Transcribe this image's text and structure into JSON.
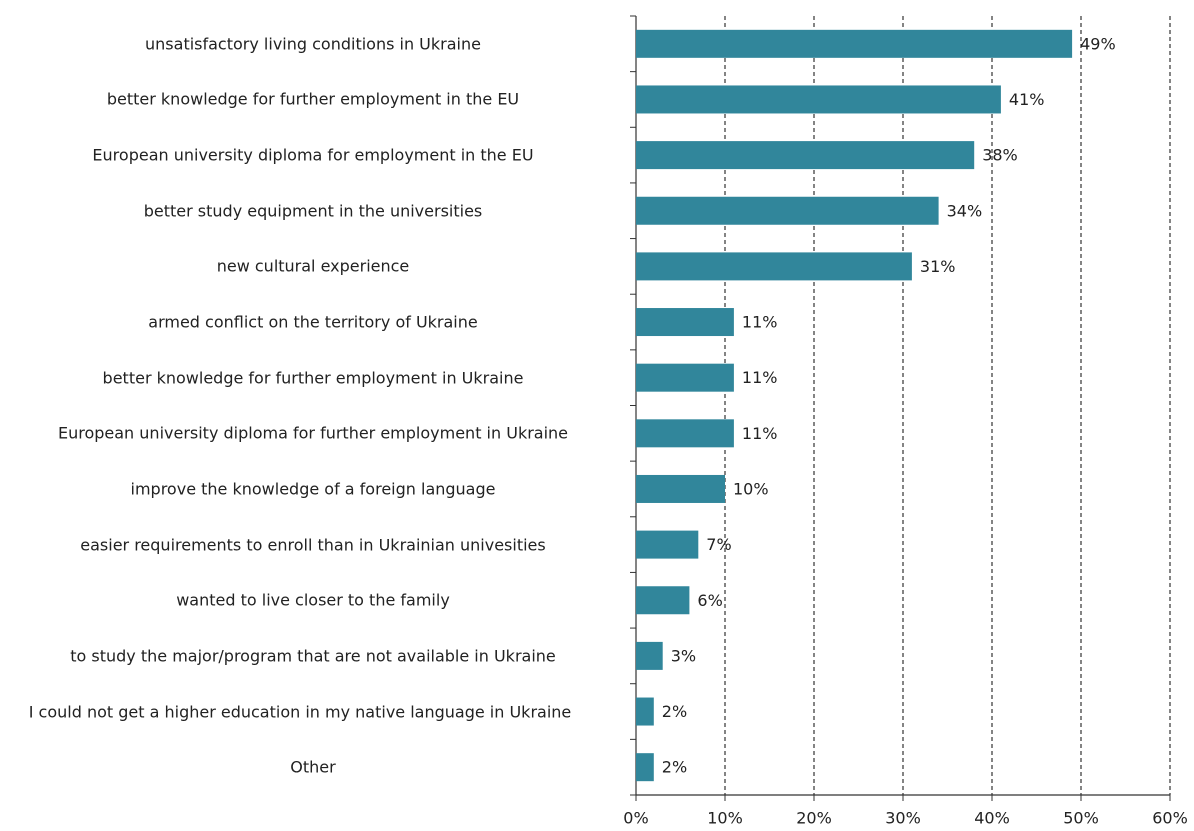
{
  "chart_data": {
    "type": "bar",
    "orientation": "horizontal",
    "categories": [
      "unsatisfactory living conditions in Ukraine",
      "better knowledge for further employment in the EU",
      "European university diploma for employment in the EU",
      "better study equipment in the universities",
      "new cultural experience",
      "armed conflict on the territory of Ukraine",
      "better knowledge for further employment in Ukraine",
      "European university diploma for further employment in Ukraine",
      "improve the knowledge of a foreign language",
      "easier requirements to enroll than in Ukrainian univesities",
      "wanted to live closer to the family",
      "to study the major/program that are not available in Ukraine",
      "I could not get a higher education in my native language in Ukraine",
      "Other"
    ],
    "values": [
      49,
      41,
      38,
      34,
      31,
      11,
      11,
      11,
      10,
      7,
      6,
      3,
      2,
      2
    ],
    "value_labels": [
      "49%",
      "41%",
      "38%",
      "34%",
      "31%",
      "11%",
      "11%",
      "11%",
      "10%",
      "7%",
      "6%",
      "3%",
      "2%",
      "2%"
    ],
    "color": "#31869b",
    "xlim": [
      0,
      60
    ],
    "xticks": [
      {
        "value": 0,
        "label": "0%"
      },
      {
        "value": 10,
        "label": "10%"
      },
      {
        "value": 20,
        "label": "20%"
      },
      {
        "value": 30,
        "label": "30%"
      },
      {
        "value": 40,
        "label": "40%"
      },
      {
        "value": 50,
        "label": "50%"
      },
      {
        "value": 60,
        "label": "60%"
      }
    ],
    "grid": true
  }
}
